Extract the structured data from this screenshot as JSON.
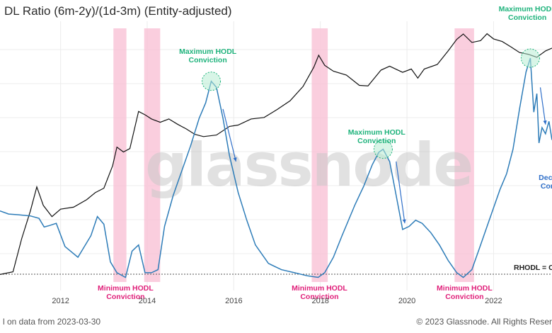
{
  "header": {
    "title": "DL Ratio (6m-2y)/(1d-3m) (Entity-adjusted)"
  },
  "footer": {
    "left": "l on data from 2023-03-30",
    "right": "© 2023 Glassnode. All Rights Reser"
  },
  "watermark": "glassnode",
  "colors": {
    "price": "#111111",
    "rhodl": "#2d7cb8",
    "shade": "#f9c5d8",
    "green": "#1fb37c",
    "pink": "#e0207a",
    "blue": "#2f6fc9"
  },
  "chart_data": {
    "type": "line",
    "xlim": [
      2010.6,
      2023.35
    ],
    "x_ticks": [
      {
        "x": 2012,
        "label": "2012"
      },
      {
        "x": 2014,
        "label": "2014"
      },
      {
        "x": 2016,
        "label": "2016"
      },
      {
        "x": 2018,
        "label": "2018"
      },
      {
        "x": 2020,
        "label": "2020"
      },
      {
        "x": 2022,
        "label": "2022"
      }
    ],
    "shaded_periods": [
      [
        2013.22,
        2013.52
      ],
      [
        2013.93,
        2014.3
      ],
      [
        2017.8,
        2018.17
      ],
      [
        2021.1,
        2021.55
      ]
    ],
    "series": [
      {
        "key": "price",
        "x": [
          2010.6,
          2010.9,
          2011.1,
          2011.3,
          2011.45,
          2011.6,
          2011.8,
          2012.0,
          2012.3,
          2012.6,
          2012.8,
          2013.0,
          2013.2,
          2013.3,
          2013.45,
          2013.6,
          2013.8,
          2013.95,
          2014.1,
          2014.3,
          2014.5,
          2014.7,
          2014.9,
          2015.1,
          2015.3,
          2015.6,
          2015.9,
          2016.1,
          2016.4,
          2016.7,
          2017.0,
          2017.3,
          2017.6,
          2017.85,
          2017.96,
          2018.1,
          2018.3,
          2018.6,
          2018.9,
          2019.1,
          2019.4,
          2019.6,
          2019.9,
          2020.1,
          2020.25,
          2020.4,
          2020.7,
          2020.95,
          2021.15,
          2021.3,
          2021.5,
          2021.7,
          2021.85,
          2022.0,
          2022.2,
          2022.4,
          2022.6,
          2022.8,
          2023.0,
          2023.2,
          2023.35
        ],
        "y": [
          0.13,
          0.15,
          0.9,
          4.0,
          15.0,
          5.5,
          3.0,
          4.5,
          5.0,
          7.5,
          11,
          14,
          47,
          130,
          100,
          120,
          900,
          750,
          600,
          500,
          600,
          450,
          350,
          260,
          230,
          250,
          400,
          430,
          600,
          650,
          1000,
          1600,
          3500,
          10000,
          19000,
          11000,
          8000,
          6500,
          3700,
          3600,
          8500,
          10500,
          7500,
          9000,
          5500,
          9000,
          11500,
          24000,
          45000,
          60000,
          38000,
          42000,
          61000,
          46000,
          40000,
          30000,
          22000,
          20000,
          17000,
          24000,
          28000
        ],
        "scale": "log",
        "ylim": [
          0.08,
          120000
        ]
      },
      {
        "key": "rhodl",
        "x": [
          2010.6,
          2010.8,
          2011.0,
          2011.3,
          2011.5,
          2011.62,
          2011.75,
          2011.9,
          2012.1,
          2012.4,
          2012.7,
          2012.85,
          2013.0,
          2013.15,
          2013.3,
          2013.5,
          2013.65,
          2013.8,
          2013.95,
          2014.1,
          2014.25,
          2014.4,
          2014.6,
          2014.8,
          2015.0,
          2015.2,
          2015.35,
          2015.48,
          2015.6,
          2015.75,
          2015.9,
          2016.1,
          2016.3,
          2016.5,
          2016.8,
          2017.1,
          2017.4,
          2017.7,
          2017.95,
          2018.1,
          2018.3,
          2018.5,
          2018.8,
          2019.0,
          2019.2,
          2019.35,
          2019.45,
          2019.6,
          2019.75,
          2019.9,
          2020.05,
          2020.2,
          2020.35,
          2020.55,
          2020.75,
          2020.95,
          2021.15,
          2021.3,
          2021.5,
          2021.7,
          2021.9,
          2022.0,
          2022.15,
          2022.3,
          2022.45,
          2022.6,
          2022.75,
          2022.85,
          2022.93,
          2023.0,
          2023.05,
          2023.12,
          2023.2,
          2023.28,
          2023.35
        ],
        "y": [
          0.3,
          0.2,
          0.18,
          0.14,
          0.06,
          -0.22,
          -0.17,
          -0.1,
          -0.85,
          -1.2,
          -0.5,
          0.12,
          -0.13,
          -1.35,
          -1.7,
          -1.85,
          -1.0,
          -0.8,
          -1.7,
          -1.7,
          -1.6,
          -0.2,
          0.8,
          1.6,
          2.4,
          3.3,
          3.8,
          4.5,
          4.3,
          3.3,
          2.1,
          0.9,
          0.0,
          -0.8,
          -1.4,
          -1.6,
          -1.7,
          -1.8,
          -1.85,
          -1.7,
          -1.2,
          -0.5,
          0.5,
          1.1,
          1.8,
          2.2,
          2.3,
          1.9,
          0.8,
          -0.3,
          -0.2,
          0.0,
          -0.1,
          -0.4,
          -0.8,
          -1.3,
          -1.7,
          -1.85,
          -1.6,
          -0.8,
          0.0,
          0.4,
          1.0,
          1.5,
          2.3,
          3.6,
          4.8,
          5.25,
          3.5,
          4.1,
          2.5,
          3.0,
          2.8,
          3.2,
          2.6
        ],
        "scale": "log",
        "ylim": [
          -2.0,
          5.8
        ]
      }
    ],
    "annotations": [
      {
        "lines": [
          "Maximum HODL",
          "Conviction"
        ],
        "x": 2015.4,
        "color": "green"
      },
      {
        "lines": [
          "Maximum HODL",
          "Conviction"
        ],
        "x": 2019.3,
        "color": "green"
      },
      {
        "lines": [
          "Maximum HODL",
          "Conviction"
        ],
        "x": 2022.78,
        "color": "green"
      },
      {
        "lines": [
          "Minimum HODL",
          "Conviction"
        ],
        "x": 2013.5,
        "color": "pink"
      },
      {
        "lines": [
          "Minimum HODL",
          "Conviction"
        ],
        "x": 2017.98,
        "color": "pink"
      },
      {
        "lines": [
          "Minimum HODL",
          "Conviction"
        ],
        "x": 2021.33,
        "color": "pink"
      },
      {
        "lines": [
          "Declin",
          "Conv"
        ],
        "x": 2023.3,
        "color": "blue"
      }
    ],
    "threshold_label": "RHODL = C"
  }
}
